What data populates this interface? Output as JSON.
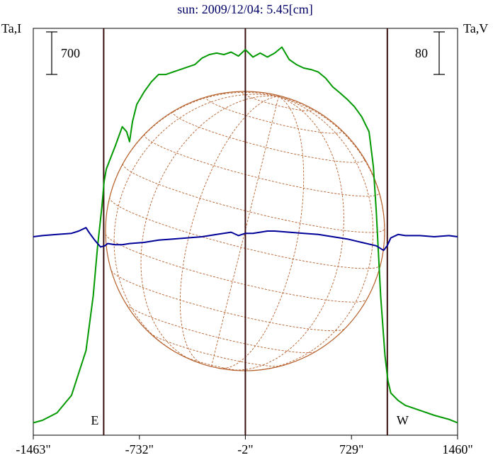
{
  "chart_data": {
    "type": "line",
    "title": "sun: 2009/12/04: 5.45[cm]",
    "left_axis_label": "Ta,I",
    "right_axis_label": "Ta,V",
    "scale_bar_left": "700",
    "scale_bar_right": "80",
    "x_ticks": [
      {
        "value": -1463,
        "label": "-1463\""
      },
      {
        "value": -732,
        "label": "-732\""
      },
      {
        "value": -2,
        "label": "-2\""
      },
      {
        "value": 729,
        "label": "729\""
      },
      {
        "value": 1460,
        "label": "1460\""
      }
    ],
    "xlim": [
      -1463,
      1460
    ],
    "limb_markers": [
      {
        "x": -978,
        "label": "E"
      },
      {
        "x": -2,
        "label": ""
      },
      {
        "x": 976,
        "label": "W"
      }
    ],
    "disk": {
      "center_x": -2,
      "radius_arcsec": 976
    },
    "series": [
      {
        "color": "#009900",
        "x": [
          -1463,
          -1400,
          -1300,
          -1200,
          -1100,
          -1050,
          -1020,
          -990,
          -975,
          -960,
          -940,
          -900,
          -850,
          -820,
          -800,
          -780,
          -750,
          -700,
          -650,
          -600,
          -550,
          -500,
          -450,
          -400,
          -350,
          -300,
          -250,
          -200,
          -150,
          -100,
          -50,
          -2,
          50,
          100,
          150,
          200,
          250,
          300,
          350,
          400,
          450,
          500,
          550,
          600,
          650,
          700,
          750,
          800,
          850,
          880,
          900,
          930,
          960,
          980,
          1000,
          1050,
          1100,
          1200,
          1300,
          1400,
          1460
        ],
        "values": [
          5,
          10,
          25,
          60,
          150,
          260,
          360,
          440,
          490,
          515,
          530,
          560,
          600,
          590,
          570,
          610,
          645,
          670,
          690,
          705,
          705,
          710,
          715,
          720,
          725,
          738,
          745,
          748,
          745,
          750,
          742,
          755,
          740,
          748,
          740,
          748,
          760,
          735,
          725,
          718,
          715,
          710,
          698,
          680,
          668,
          655,
          640,
          620,
          590,
          520,
          430,
          260,
          140,
          90,
          65,
          50,
          40,
          30,
          20,
          12,
          5
        ]
      },
      {
        "color": "#000099",
        "x": [
          -1463,
          -1400,
          -1300,
          -1200,
          -1150,
          -1100,
          -1080,
          -1040,
          -1000,
          -970,
          -950,
          -900,
          -850,
          -800,
          -700,
          -600,
          -500,
          -400,
          -300,
          -200,
          -100,
          -50,
          -2,
          50,
          100,
          150,
          200,
          300,
          400,
          500,
          600,
          700,
          800,
          900,
          950,
          975,
          1000,
          1050,
          1100,
          1200,
          1300,
          1400,
          1460
        ],
        "values": [
          0,
          1,
          2,
          3,
          5,
          8,
          4,
          -3,
          -9,
          -8,
          -6,
          -7,
          -7,
          -6,
          -5,
          -3,
          -2,
          -1,
          0,
          2,
          4,
          1,
          3,
          3,
          4,
          5,
          5,
          4,
          3,
          2,
          0,
          -2,
          -5,
          -8,
          -12,
          -8,
          -1,
          2,
          1,
          1,
          0,
          1,
          0
        ]
      }
    ]
  }
}
